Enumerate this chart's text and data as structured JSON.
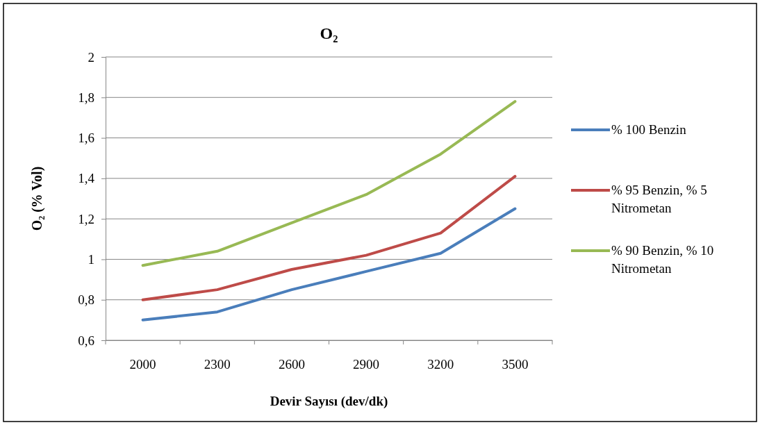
{
  "chart_data": {
    "type": "line",
    "title": "O₂",
    "xlabel": "Devir Sayısı (dev/dk)",
    "ylabel": "O₂  (% Vol)",
    "categories": [
      "2000",
      "2300",
      "2600",
      "2900",
      "3200",
      "3500"
    ],
    "series": [
      {
        "name": "% 100 Benzin",
        "color": "#4a7ebb",
        "values": [
          0.7,
          0.74,
          0.85,
          0.94,
          1.03,
          1.25
        ]
      },
      {
        "name": "% 95 Benzin, % 5 Nitrometan",
        "color": "#be4b48",
        "values": [
          0.8,
          0.85,
          0.95,
          1.02,
          1.13,
          1.41
        ]
      },
      {
        "name": "% 90 Benzin, % 10 Nitrometan",
        "color": "#98b954",
        "values": [
          0.97,
          1.04,
          1.18,
          1.32,
          1.52,
          1.78
        ]
      }
    ],
    "ylim": [
      0.6,
      2
    ],
    "yticks": [
      {
        "value": 0.6,
        "label": "0,6"
      },
      {
        "value": 0.8,
        "label": "0,8"
      },
      {
        "value": 1,
        "label": "1"
      },
      {
        "value": 1.2,
        "label": "1,2"
      },
      {
        "value": 1.4,
        "label": "1,4"
      },
      {
        "value": 1.6,
        "label": "1,6"
      },
      {
        "value": 1.8,
        "label": "1,8"
      },
      {
        "value": 2,
        "label": "2"
      }
    ],
    "grid": "y",
    "legend": "right",
    "marker": "none",
    "line_style": "solid"
  }
}
